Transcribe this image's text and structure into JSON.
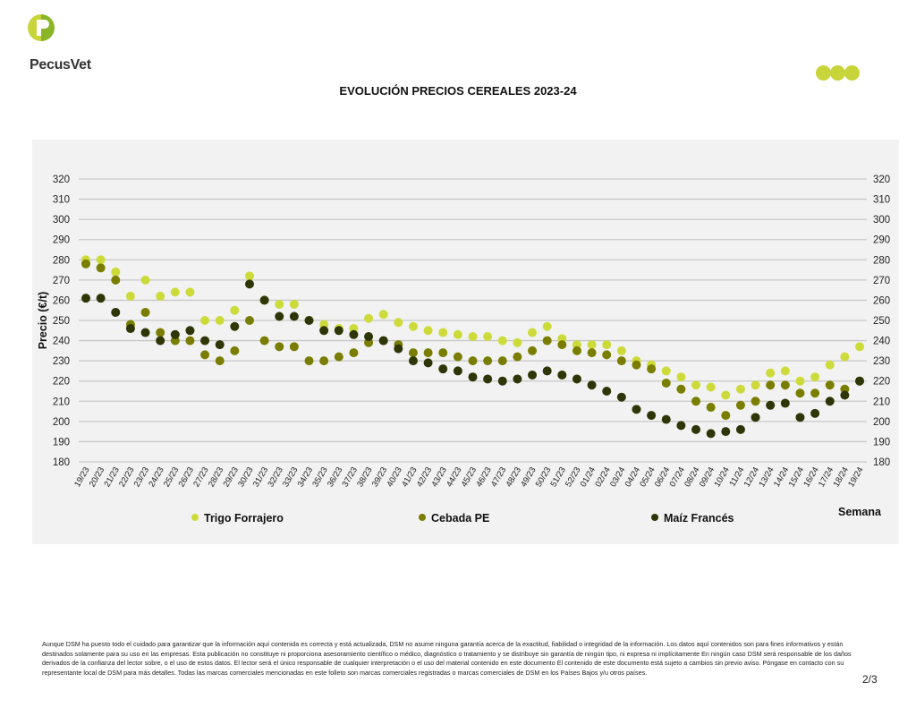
{
  "header": {
    "logo_text": "PecusVet"
  },
  "chart_data": {
    "type": "scatter",
    "title": "EVOLUCIÓN PRECIOS CEREALES 2023-24",
    "xlabel": "Semana",
    "ylabel": "Precio (€/t)",
    "ylim": [
      180,
      320
    ],
    "yticks": [
      180,
      190,
      200,
      210,
      220,
      230,
      240,
      250,
      260,
      270,
      280,
      290,
      300,
      310,
      320
    ],
    "grid": true,
    "legend_position": "bottom",
    "categories": [
      "19/23",
      "20/23",
      "21/23",
      "22/23",
      "23/23",
      "24/23",
      "25/23",
      "26/23",
      "27/23",
      "28/23",
      "29/23",
      "30/23",
      "31/23",
      "32/23",
      "33/23",
      "34/23",
      "35/23",
      "36/23",
      "37/23",
      "38/23",
      "39/23",
      "40/23",
      "41/23",
      "42/23",
      "43/23",
      "44/23",
      "45/23",
      "46/23",
      "47/23",
      "48/23",
      "49/23",
      "50/23",
      "51/23",
      "52/23",
      "01/24",
      "02/24",
      "03/24",
      "04/24",
      "05/24",
      "06/24",
      "07/24",
      "08/24",
      "09/24",
      "10/24",
      "11/24",
      "12/24",
      "13/24",
      "14/24",
      "15/24",
      "16/24",
      "17/24",
      "18/24",
      "19/24"
    ],
    "series": [
      {
        "name": "Trigo Forrajero",
        "color": "#cddb3a",
        "values": [
          280,
          280,
          274,
          262,
          270,
          262,
          264,
          264,
          250,
          250,
          255,
          272,
          260,
          258,
          258,
          250,
          248,
          246,
          246,
          251,
          253,
          249,
          247,
          245,
          244,
          243,
          242,
          242,
          240,
          239,
          244,
          247,
          241,
          238,
          238,
          238,
          235,
          230,
          228,
          225,
          222,
          218,
          217,
          213,
          216,
          218,
          224,
          225,
          220,
          222,
          228,
          232,
          237
        ]
      },
      {
        "name": "Cebada PE",
        "color": "#7a7e00",
        "values": [
          278,
          276,
          270,
          248,
          254,
          244,
          240,
          240,
          233,
          230,
          235,
          250,
          240,
          237,
          237,
          230,
          230,
          232,
          234,
          239,
          240,
          238,
          234,
          234,
          234,
          232,
          230,
          230,
          230,
          232,
          235,
          240,
          238,
          235,
          234,
          233,
          230,
          228,
          226,
          219,
          216,
          210,
          207,
          203,
          208,
          210,
          218,
          218,
          214,
          214,
          218,
          216,
          220
        ]
      },
      {
        "name": "Maíz Francés",
        "color": "#2e3607",
        "values": [
          261,
          261,
          254,
          246,
          244,
          240,
          243,
          245,
          240,
          238,
          247,
          268,
          260,
          252,
          252,
          250,
          245,
          245,
          243,
          242,
          240,
          236,
          230,
          229,
          226,
          225,
          222,
          221,
          220,
          221,
          223,
          225,
          223,
          221,
          218,
          215,
          212,
          206,
          203,
          201,
          198,
          196,
          194,
          195,
          196,
          202,
          208,
          209,
          202,
          204,
          210,
          213,
          220
        ]
      }
    ]
  },
  "footer": {
    "disclaimer": "Aunque DSM ha puesto todo el cuidado para garantizar que la información aquí contenida es correcta y está actualizada, DSM no asume ninguna garantía acerca de la exactitud, fiabilidad o integridad de la información. Los datos aquí contenidos son para fines informativos y están destinados solamente para su uso en las empresas. Esta publicación no constituye ni proporciona asesoramiento científico o médico, diagnóstico o tratamiento y se distribuye sin garantía de ningún tipo, ni expresa ni implícitamente En ningún caso DSM será responsable de los daños derivados de la confianza del lector sobre, o el uso de estos datos. El lector será el único responsable de cualquier interpretación o el uso del material contenido en este documento El contenido de este documento está sujeto a cambios sin previo aviso. Póngase en contacto con su representante local de DSM para más detalles. Todas las marcas comerciales mencionadas en este folleto son marcas comerciales registradas o marcas comerciales de DSM en los Países Bajos y/u otros países.",
    "page_number": "2/3"
  }
}
